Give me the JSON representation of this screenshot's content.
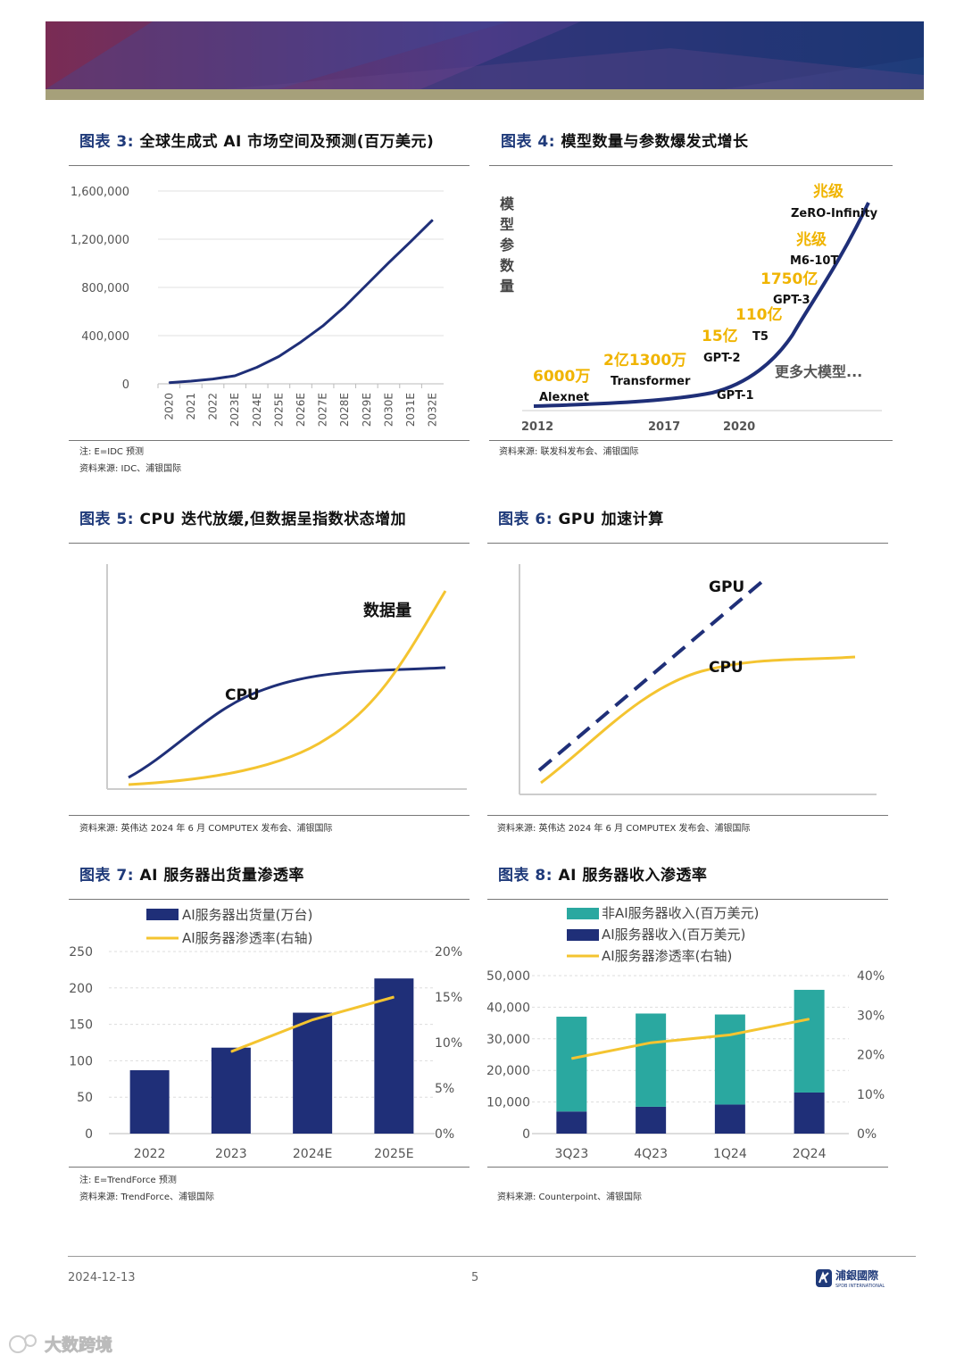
{
  "colors": {
    "navy": "#1f2f78",
    "gold": "#f4c430",
    "teal": "#2aa8a0",
    "banner_a": "#7a2c54",
    "banner_b": "#1d3c7a",
    "stripe": "#a6a07a"
  },
  "footer": {
    "date": "2024-12-13",
    "page": "5",
    "logo_text": "浦銀國際",
    "logo_sub": "SPDB INTERNATIONAL"
  },
  "watermark": {
    "text": "大数跨境"
  },
  "fig3": {
    "prefix": "图表 3:",
    "title": "全球生成式 AI 市场空间及预测(百万美元)",
    "note": "注: E=IDC 预测",
    "source": "资料来源: IDC、浦银国际",
    "chart_data": {
      "type": "line",
      "categories": [
        "2020",
        "2021",
        "2022",
        "2023E",
        "2024E",
        "2025E",
        "2026E",
        "2027E",
        "2028E",
        "2029E",
        "2030E",
        "2031E",
        "2032E"
      ],
      "yticks": [
        "0",
        "400,000",
        "800,000",
        "1,200,000",
        "1,600,000"
      ],
      "ylim": [
        0,
        1600000
      ],
      "values": [
        10000,
        22000,
        40000,
        67000,
        137000,
        227000,
        347000,
        480000,
        640000,
        822000,
        1005000,
        1180000,
        1360000
      ]
    }
  },
  "fig4": {
    "prefix": "图表 4:",
    "title": "模型数量与参数爆发式增长",
    "source": "资料来源: 联发科发布会、浦银国际",
    "ylabel": [
      "模",
      "型",
      "参",
      "数",
      "量"
    ],
    "xlabels": [
      "2012",
      "2017",
      "2020"
    ],
    "models": [
      "Alexnet",
      "Transformer",
      "GPT-2",
      "GPT-1",
      "T5",
      "GPT-3",
      "M6-10T",
      "ZeRO-Infinity"
    ],
    "params": [
      "6000万",
      "2亿1300万",
      "15亿",
      "110亿",
      "1750亿",
      "兆级",
      "兆级"
    ],
    "more": "更多大模型..."
  },
  "fig5": {
    "prefix": "图表 5:",
    "title": "CPU 迭代放缓,但数据呈指数状态增加",
    "source": "资料来源: 英伟达 2024 年 6 月 COMPUTEX 发布会、浦银国际",
    "label_cpu": "CPU",
    "label_data": "数据量"
  },
  "fig6": {
    "prefix": "图表 6:",
    "title": "GPU 加速计算",
    "source": "资料来源: 英伟达 2024 年 6 月 COMPUTEX 发布会、浦银国际",
    "label_gpu": "GPU",
    "label_cpu": "CPU"
  },
  "fig7": {
    "prefix": "图表 7:",
    "title": "AI 服务器出货量渗透率",
    "note": "注: E=TrendForce 预测",
    "source": "资料来源: TrendForce、浦银国际",
    "chart_data": {
      "type": "bar",
      "categories": [
        "2022",
        "2023",
        "2024E",
        "2025E"
      ],
      "series": [
        {
          "name": "AI服务器出货量(万台)",
          "kind": "bar",
          "axis": "left",
          "values": [
            87,
            118,
            166,
            213
          ]
        },
        {
          "name": "AI服务器渗透率(右轴)",
          "kind": "line",
          "axis": "right",
          "values": [
            null,
            9.0,
            12.5,
            15.0
          ]
        }
      ],
      "yticks_left": [
        "0",
        "50",
        "100",
        "150",
        "200",
        "250"
      ],
      "ylim_left": [
        0,
        250
      ],
      "yticks_right": [
        "0%",
        "5%",
        "10%",
        "15%",
        "20%"
      ],
      "ylim_right": [
        0,
        20
      ]
    }
  },
  "fig8": {
    "prefix": "图表 8:",
    "title": "AI 服务器收入渗透率",
    "source": "资料来源: Counterpoint、浦银国际",
    "chart_data": {
      "type": "bar",
      "categories": [
        "3Q23",
        "4Q23",
        "1Q24",
        "2Q24"
      ],
      "series": [
        {
          "name": "非AI服务器收入(百万美元)",
          "kind": "bar",
          "axis": "left",
          "values": [
            30000,
            29500,
            28500,
            32500
          ]
        },
        {
          "name": "AI服务器收入(百万美元)",
          "kind": "bar",
          "axis": "left",
          "values": [
            7000,
            8500,
            9200,
            13000
          ]
        },
        {
          "name": "AI服务器渗透率(右轴)",
          "kind": "line",
          "axis": "right",
          "values": [
            19.0,
            23.0,
            25.0,
            29.0
          ]
        }
      ],
      "yticks_left": [
        "0",
        "10,000",
        "20,000",
        "30,000",
        "40,000",
        "50,000"
      ],
      "ylim_left": [
        0,
        50000
      ],
      "yticks_right": [
        "0%",
        "10%",
        "20%",
        "30%",
        "40%"
      ],
      "ylim_right": [
        0,
        40
      ]
    }
  }
}
